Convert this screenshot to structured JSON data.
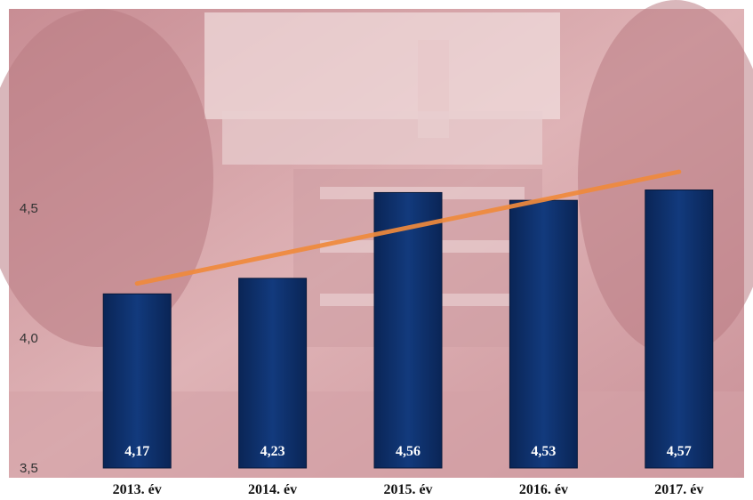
{
  "chart_data": {
    "type": "bar",
    "categories": [
      "2013. év",
      "2014. év",
      "2015. év",
      "2016. év",
      "2017. év"
    ],
    "values": [
      4.17,
      4.23,
      4.56,
      4.53,
      4.57
    ],
    "value_labels": [
      "4,17",
      "4,23",
      "4,56",
      "4,53",
      "4,57"
    ],
    "yticks": [
      3.5,
      4.0,
      4.5
    ],
    "ytick_labels": [
      "3,5",
      "4,0",
      "4,5"
    ],
    "ylim": [
      3.5,
      4.63
    ],
    "trendline": {
      "type": "linear",
      "start": 4.21,
      "end": 4.64
    },
    "grid": false,
    "colors": {
      "bar": "#0d2f6b",
      "trendline": "#f08a3c",
      "background": "#d9a8a8"
    }
  }
}
